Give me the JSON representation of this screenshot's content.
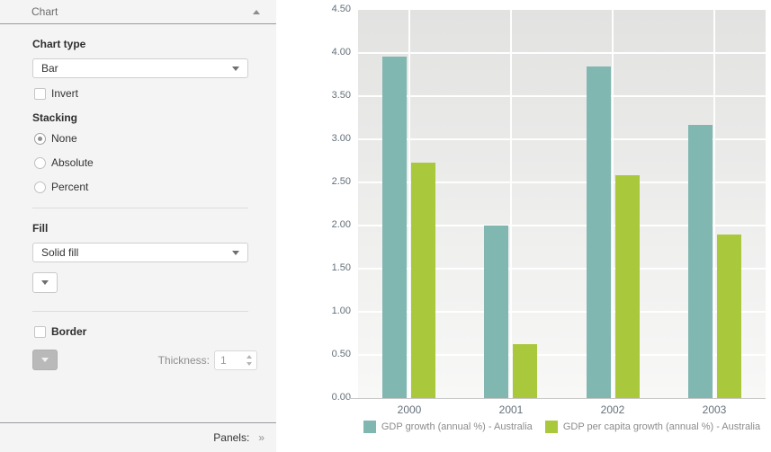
{
  "sidebar": {
    "header": {
      "title": "Chart"
    },
    "chart_type_label": "Chart type",
    "chart_type_value": "Bar",
    "invert_label": "Invert",
    "stacking_label": "Stacking",
    "stacking_options": [
      {
        "label": "None",
        "selected": true
      },
      {
        "label": "Absolute",
        "selected": false
      },
      {
        "label": "Percent",
        "selected": false
      }
    ],
    "fill_label": "Fill",
    "fill_value": "Solid fill",
    "border_label": "Border",
    "thickness_label": "Thickness:",
    "thickness_value": "1",
    "footer": {
      "label": "Panels:",
      "icon": "»"
    }
  },
  "chart_data": {
    "type": "bar",
    "categories": [
      "2000",
      "2001",
      "2002",
      "2003"
    ],
    "series": [
      {
        "name": "GDP growth (annual %) - Australia",
        "color": "#80b7b1",
        "values": [
          3.96,
          2.0,
          3.84,
          3.17
        ]
      },
      {
        "name": "GDP per capita growth (annual %) - Australia",
        "color": "#a9c83c",
        "values": [
          2.73,
          0.63,
          2.58,
          1.9
        ]
      }
    ],
    "ylim": [
      0,
      4.5
    ],
    "ytick_step": 0.5,
    "grid": true,
    "legend_position": "bottom"
  }
}
